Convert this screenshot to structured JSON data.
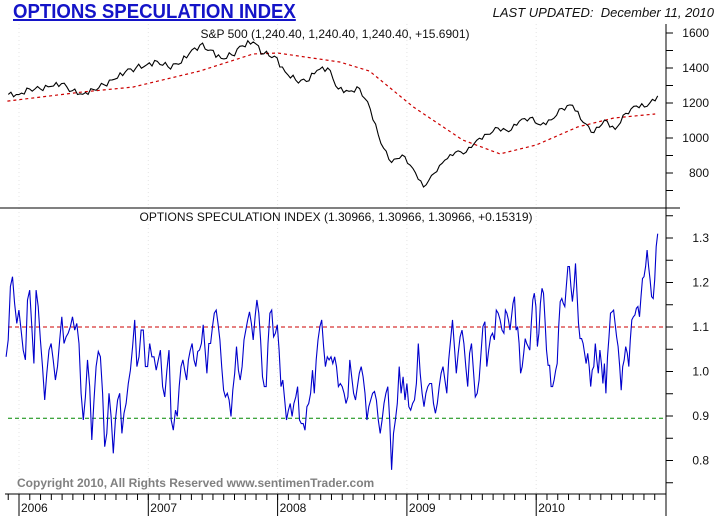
{
  "chart_data": {
    "type": "line",
    "title": "OPTIONS SPECULATION INDEX",
    "last_updated_label": "LAST UPDATED:",
    "last_updated": "December 11, 2010",
    "copyright": "Copyright 2010, All Rights Reserved  www.sentimenTrader.com",
    "xlim": [
      2005.9,
      2010.97
    ],
    "x_ticks": [
      {
        "label": "2006",
        "year": 2006
      },
      {
        "label": "2007",
        "year": 2007
      },
      {
        "label": "2008",
        "year": 2008
      },
      {
        "label": "2009",
        "year": 2009
      },
      {
        "label": "2010",
        "year": 2010
      }
    ],
    "colors": {
      "sp500": "#000000",
      "moving_average": "#cc0000",
      "osi": "#0000cc",
      "upper_band": "#cc0000",
      "lower_band": "#008800",
      "axis": "#000000",
      "copyright": "#808080",
      "title": "#1414c8"
    },
    "panels": [
      {
        "title": "S&P 500 (1,240.40, 1,240.40, 1,240.40, +15.6901)",
        "ylim": [
          600,
          1651
        ],
        "yticks": [
          {
            "value": 1600,
            "label": "1600"
          },
          {
            "value": 1400,
            "label": "1400"
          },
          {
            "value": 1200,
            "label": "1200"
          },
          {
            "value": 1000,
            "label": "1000"
          },
          {
            "value": 800,
            "label": "800"
          }
        ],
        "minor_step": 100,
        "sp500": {
          "start_year": 2005.917,
          "end_year": 2010.94,
          "values": [
            1249,
            1248,
            1280,
            1281,
            1295,
            1311,
            1270,
            1250,
            1277,
            1304,
            1336,
            1378,
            1401,
            1418,
            1438,
            1407,
            1421,
            1482,
            1531,
            1503,
            1455,
            1474,
            1527,
            1549,
            1481,
            1468,
            1378,
            1331,
            1323,
            1386,
            1400,
            1280,
            1267,
            1283,
            1165,
            969,
            860,
            903,
            826,
            720,
            798,
            873,
            919,
            919,
            987,
            1021,
            1057,
            1036,
            1096,
            1115,
            1074,
            1104,
            1169,
            1187,
            1089,
            1031,
            1102,
            1049,
            1141,
            1183,
            1181,
            1240.4
          ]
        },
        "moving_average": {
          "points": [
            [
              2005.91,
              1211
            ],
            [
              2006.49,
              1263
            ],
            [
              2006.88,
              1291
            ],
            [
              2007.4,
              1383
            ],
            [
              2007.81,
              1480
            ],
            [
              2008.0,
              1486
            ],
            [
              2008.48,
              1434
            ],
            [
              2008.71,
              1383
            ],
            [
              2009.05,
              1177
            ],
            [
              2009.43,
              989
            ],
            [
              2009.72,
              909
            ],
            [
              2010.0,
              960
            ],
            [
              2010.32,
              1063
            ],
            [
              2010.6,
              1114
            ],
            [
              2010.92,
              1137
            ]
          ]
        }
      },
      {
        "title": "OPTIONS SPECULATION INDEX (1.30966, 1.30966, 1.30966, +0.15319)",
        "ylim": [
          0.729,
          1.367
        ],
        "yticks": [
          {
            "value": 1.3,
            "label": "1.3"
          },
          {
            "value": 1.2,
            "label": "1.2"
          },
          {
            "value": 1.1,
            "label": "1.1"
          },
          {
            "value": 1.0,
            "label": "1.0"
          },
          {
            "value": 0.9,
            "label": "0.9"
          },
          {
            "value": 0.8,
            "label": "0.8"
          }
        ],
        "minor_step": 0.05,
        "reference_lines": [
          {
            "value": 1.1,
            "color": "#cc0000"
          },
          {
            "value": 0.895,
            "color": "#008800"
          }
        ],
        "osi_segments": [
          {
            "start_year": 2005.9,
            "end_year": 2007.21,
            "values": [
              1.033,
              1.071,
              1.191,
              1.213,
              1.153,
              1.108,
              1.138,
              1.093,
              1.048,
              1.026,
              1.161,
              1.183,
              1.101,
              1.018,
              1.183,
              1.146,
              1.071,
              1.011,
              0.936,
              0.996,
              1.048,
              1.063,
              1.026,
              0.981,
              1.011,
              1.071,
              1.123,
              1.063,
              1.078,
              1.086,
              1.101,
              1.123,
              1.093,
              1.108,
              1.063,
              0.951,
              0.891,
              0.943,
              1.026,
              0.966,
              0.846,
              0.936,
              1.011,
              1.045,
              1.033,
              0.951,
              0.831,
              0.861,
              0.951,
              0.899,
              0.816,
              0.891,
              0.936,
              0.951,
              0.861,
              0.906,
              0.928,
              0.973,
              1.003,
              1.056,
              1.116,
              1.011,
              1.033,
              1.093,
              1.093,
              1.011,
              1.011,
              1.063,
              1.033,
              1.033,
              1.003,
              1.026,
              1.048,
              0.966,
              0.943,
              1.003,
              1.048,
              0.891,
              0.868,
              0.913
            ]
          },
          {
            "start_year": 2007.21,
            "end_year": 2008.47,
            "values": [
              0.846,
              0.899,
              0.966,
              1.011,
              1.026,
              1.003,
              0.981,
              1.026,
              1.048,
              1.063,
              1.026,
              1.011,
              1.045,
              1.048,
              1.063,
              1.105,
              1.048,
              0.996,
              1.063,
              1.063,
              1.101,
              1.131,
              1.138,
              1.108,
              1.071,
              1.011,
              0.958,
              0.943,
              0.951,
              0.936,
              0.899,
              0.958,
              0.996,
              1.056,
              1.003,
              0.981,
              1.011,
              1.071,
              1.093,
              1.116,
              1.134,
              1.108,
              1.071,
              1.123,
              1.161,
              1.131,
              1.071,
              0.988,
              0.966,
              0.966,
              1.063,
              1.131,
              1.138,
              1.078,
              1.086,
              1.105,
              1.048,
              0.966,
              0.981,
              0.936,
              0.891,
              0.913,
              0.928,
              0.899,
              0.928,
              0.943,
              0.966,
              0.891,
              0.883,
              0.883,
              0.868,
              0.921,
              0.928,
              0.951,
              1.003,
              0.951,
              1.026,
              1.071,
              1.101,
              1.116,
              1.056,
              1.011,
              1.033,
              1.026,
              1.033,
              1.018,
              1.033,
              1.011,
              0.966
            ]
          },
          {
            "start_year": 2008.47,
            "end_year": 2009.75,
            "values": [
              0.966,
              0.973,
              0.966,
              0.951,
              0.928,
              0.943,
              1.026,
              0.988,
              0.951,
              0.936,
              0.966,
              0.996,
              1.011,
              0.988,
              0.951,
              0.891,
              0.921,
              0.936,
              0.951,
              0.955,
              0.936,
              0.891,
              0.861,
              0.891,
              0.928,
              0.951,
              0.966,
              0.891,
              0.779,
              0.861,
              0.891,
              0.928,
              1.011,
              0.951,
              0.988,
              0.936,
              0.973,
              0.921,
              0.913,
              0.928,
              0.936,
              0.973,
              1.063,
              0.996,
              0.951,
              0.921,
              0.951,
              0.966,
              0.973,
              0.973,
              0.928,
              0.906,
              0.928,
              0.966,
              0.996,
              1.011,
              0.981,
              0.951,
              1.026,
              1.071,
              1.116,
              1.056,
              0.996,
              1.041,
              1.078,
              1.093,
              1.063,
              1.011,
              0.966,
              1.041,
              1.063,
              1.003,
              0.943,
              0.951,
              0.981,
              1.041,
              1.101,
              1.112,
              1.011,
              1.048,
              1.078,
              1.086,
              1.071,
              1.138,
              1.131,
              1.116,
              1.093,
              1.086
            ]
          },
          {
            "start_year": 2009.75,
            "end_year": 2010.94,
            "values": [
              1.086,
              1.138,
              1.131,
              1.116,
              1.093,
              1.123,
              1.153,
              1.168,
              1.093,
              1.101,
              1.063,
              0.996,
              1.011,
              1.041,
              1.074,
              1.063,
              1.056,
              1.048,
              1.108,
              1.161,
              1.176,
              1.146,
              1.056,
              1.086,
              1.153,
              1.187,
              1.176,
              1.116,
              1.048,
              1.014,
              1.014,
              0.966,
              0.966,
              0.981,
              1.003,
              1.018,
              1.101,
              1.157,
              1.164,
              1.153,
              1.146,
              1.191,
              1.236,
              1.236,
              1.191,
              1.157,
              1.191,
              1.243,
              1.176,
              1.108,
              1.074,
              1.074,
              1.063,
              1.041,
              1.018,
              1.041,
              1.011,
              0.966,
              1.003,
              1.011,
              1.063,
              1.026,
              0.996,
              1.048,
              1.018,
              0.973,
              1.018,
              0.951,
              1.033,
              1.078,
              1.131,
              1.134,
              1.138,
              1.108,
              1.078,
              1.056,
              1.011,
              0.958,
              1.011,
              1.026,
              1.056,
              1.041,
              1.011,
              1.071,
              1.116,
              1.123,
              1.127,
              1.142,
              1.146,
              1.123,
              1.168,
              1.209,
              1.213,
              1.236,
              1.273,
              1.236,
              1.206,
              1.168,
              1.164,
              1.206,
              1.281,
              1.30966
            ]
          }
        ]
      }
    ]
  }
}
